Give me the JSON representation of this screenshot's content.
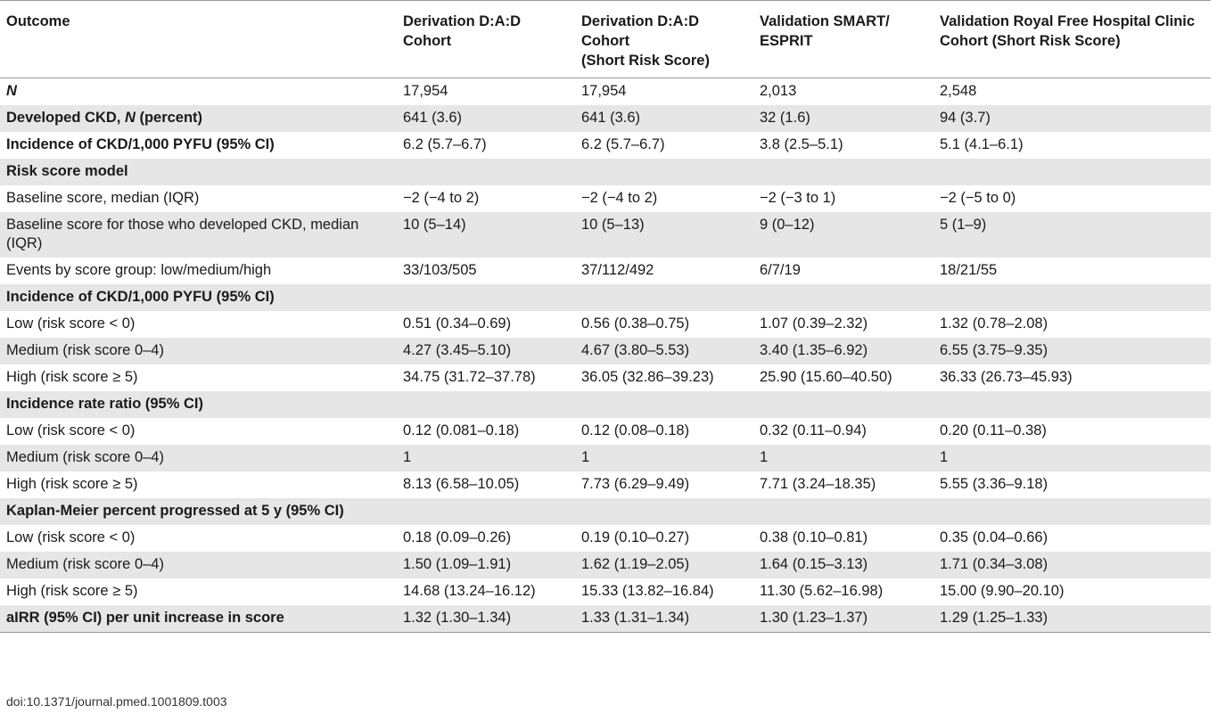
{
  "table": {
    "headers": [
      "Outcome",
      "Derivation D:A:D Cohort",
      "Derivation D:A:D Cohort\n(Short Risk Score)",
      "Validation SMART/ ESPRIT",
      "Validation Royal Free Hospital Clinic Cohort (Short Risk Score)"
    ],
    "rows": [
      {
        "cells": [
          "N",
          "17,954",
          "17,954",
          "2,013",
          "2,548"
        ],
        "bold": true,
        "shade": false
      },
      {
        "cells": [
          "Developed CKD, N (percent)",
          "641 (3.6)",
          "641 (3.6)",
          "32 (1.6)",
          "94 (3.7)"
        ],
        "bold": true,
        "shade": true
      },
      {
        "cells": [
          "Incidence of CKD/1,000 PYFU (95% CI)",
          "6.2 (5.7–6.7)",
          "6.2 (5.7–6.7)",
          "3.8 (2.5–5.1)",
          "5.1 (4.1–6.1)"
        ],
        "bold": true,
        "shade": false
      },
      {
        "cells": [
          "Risk score model",
          "",
          "",
          "",
          ""
        ],
        "bold": true,
        "shade": true
      },
      {
        "cells": [
          "Baseline score, median (IQR)",
          "−2 (−4 to 2)",
          "−2 (−4 to 2)",
          "−2 (−3 to 1)",
          "−2 (−5 to 0)"
        ],
        "bold": false,
        "shade": false
      },
      {
        "cells": [
          "Baseline score for those who developed CKD, median (IQR)",
          "10 (5–14)",
          "10 (5–13)",
          "9 (0–12)",
          "5 (1–9)"
        ],
        "bold": false,
        "shade": true
      },
      {
        "cells": [
          "Events by score group: low/medium/high",
          "33/103/505",
          "37/112/492",
          "6/7/19",
          "18/21/55"
        ],
        "bold": false,
        "shade": false
      },
      {
        "cells": [
          "Incidence of CKD/1,000 PYFU (95% CI)",
          "",
          "",
          "",
          ""
        ],
        "bold": true,
        "shade": true
      },
      {
        "cells": [
          "Low (risk score < 0)",
          "0.51 (0.34–0.69)",
          "0.56 (0.38–0.75)",
          "1.07 (0.39–2.32)",
          "1.32 (0.78–2.08)"
        ],
        "bold": false,
        "shade": false
      },
      {
        "cells": [
          "Medium (risk score 0–4)",
          "4.27 (3.45–5.10)",
          "4.67 (3.80–5.53)",
          "3.40 (1.35–6.92)",
          "6.55 (3.75–9.35)"
        ],
        "bold": false,
        "shade": true
      },
      {
        "cells": [
          "High (risk score ≥ 5)",
          "34.75 (31.72–37.78)",
          "36.05 (32.86–39.23)",
          "25.90 (15.60–40.50)",
          "36.33 (26.73–45.93)"
        ],
        "bold": false,
        "shade": false
      },
      {
        "cells": [
          "Incidence rate ratio (95% CI)",
          "",
          "",
          "",
          ""
        ],
        "bold": true,
        "shade": true
      },
      {
        "cells": [
          "Low (risk score < 0)",
          "0.12 (0.081–0.18)",
          "0.12 (0.08–0.18)",
          "0.32 (0.11–0.94)",
          "0.20 (0.11–0.38)"
        ],
        "bold": false,
        "shade": false
      },
      {
        "cells": [
          "Medium (risk score 0–4)",
          "1",
          "1",
          "1",
          "1"
        ],
        "bold": false,
        "shade": true
      },
      {
        "cells": [
          "High (risk score ≥ 5)",
          "8.13 (6.58–10.05)",
          "7.73 (6.29–9.49)",
          "7.71 (3.24–18.35)",
          "5.55 (3.36–9.18)"
        ],
        "bold": false,
        "shade": false
      },
      {
        "cells": [
          "Kaplan-Meier percent progressed at 5 y (95% CI)",
          "",
          "",
          "",
          ""
        ],
        "bold": true,
        "shade": true
      },
      {
        "cells": [
          "Low (risk score < 0)",
          "0.18 (0.09–0.26)",
          "0.19 (0.10–0.27)",
          "0.38 (0.10–0.81)",
          "0.35 (0.04–0.66)"
        ],
        "bold": false,
        "shade": false
      },
      {
        "cells": [
          "Medium (risk score 0–4)",
          "1.50 (1.09–1.91)",
          "1.62 (1.19–2.05)",
          "1.64 (0.15–3.13)",
          "1.71 (0.34–3.08)"
        ],
        "bold": false,
        "shade": true
      },
      {
        "cells": [
          "High (risk score ≥ 5)",
          "14.68 (13.24–16.12)",
          "15.33 (13.82–16.84)",
          "11.30 (5.62–16.98)",
          "15.00 (9.90–20.10)"
        ],
        "bold": false,
        "shade": false
      },
      {
        "cells": [
          "aIRR (95% CI) per unit increase in score",
          "1.32 (1.30–1.34)",
          "1.33 (1.31–1.34)",
          "1.30 (1.23–1.37)",
          "1.29 (1.25–1.33)"
        ],
        "bold": true,
        "shade": true
      }
    ]
  },
  "doi": "doi:10.1371/journal.pmed.1001809.t003"
}
